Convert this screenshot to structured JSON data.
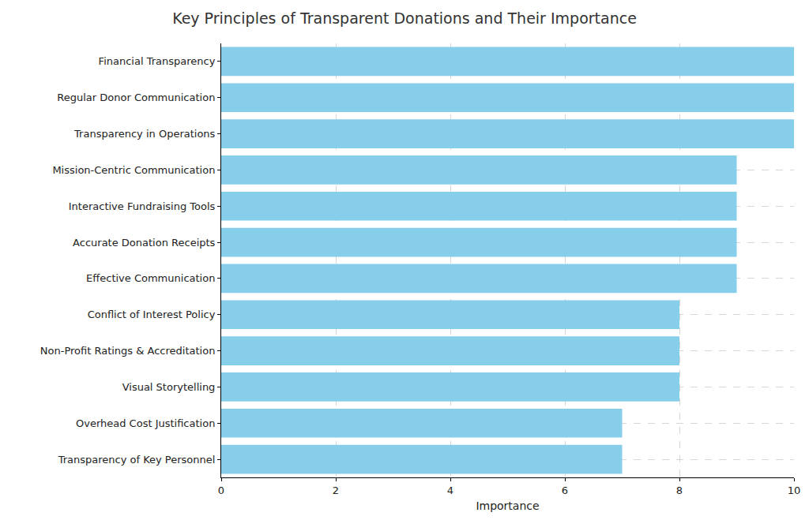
{
  "chart_data": {
    "type": "bar",
    "orientation": "horizontal",
    "title": "Key Principles of Transparent Donations and Their Importance",
    "xlabel": "Importance",
    "categories": [
      "Financial Transparency",
      "Regular Donor Communication",
      "Transparency in Operations",
      "Mission-Centric Communication",
      "Interactive Fundraising Tools",
      "Accurate Donation Receipts",
      "Effective Communication",
      "Conflict of Interest Policy",
      "Non-Profit Ratings & Accreditation",
      "Visual Storytelling",
      "Overhead Cost Justification",
      "Transparency of Key Personnel"
    ],
    "values": [
      10,
      10,
      10,
      9,
      9,
      9,
      9,
      8,
      8,
      8,
      7,
      7
    ],
    "color": "#87ceeb",
    "xlim": [
      0,
      10
    ],
    "xticks": [
      0,
      2,
      4,
      6,
      8,
      10
    ],
    "grid": true
  }
}
